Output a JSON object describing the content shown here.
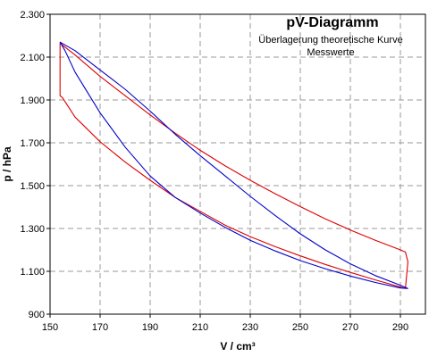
{
  "chart_data": {
    "type": "line",
    "title": "pV-Diagramm",
    "subtitle_lines": [
      "Überlagerung theoretische Kurve",
      "Messwerte"
    ],
    "xlabel": "V / cm³",
    "ylabel": "p / hPa",
    "xlim": [
      150,
      300
    ],
    "ylim": [
      900,
      2300
    ],
    "x_ticks": [
      150,
      170,
      190,
      210,
      230,
      250,
      270,
      290
    ],
    "y_ticks": [
      900,
      1100,
      1300,
      1500,
      1700,
      1900,
      2100,
      2300
    ],
    "x_tick_labels": [
      "150",
      "170",
      "190",
      "210",
      "230",
      "250",
      "270",
      "290"
    ],
    "y_tick_labels": [
      "900",
      "1.100",
      "1.300",
      "1.500",
      "1.700",
      "1.900",
      "2.100",
      "2.300"
    ],
    "grid": true,
    "series": [
      {
        "color": "#dd0000",
        "closed": true,
        "points": [
          [
            154,
            2165
          ],
          [
            160,
            2110
          ],
          [
            170,
            2010
          ],
          [
            180,
            1920
          ],
          [
            190,
            1830
          ],
          [
            200,
            1745
          ],
          [
            210,
            1665
          ],
          [
            220,
            1592
          ],
          [
            230,
            1525
          ],
          [
            240,
            1462
          ],
          [
            250,
            1402
          ],
          [
            260,
            1345
          ],
          [
            270,
            1293
          ],
          [
            280,
            1245
          ],
          [
            290,
            1200
          ],
          [
            292,
            1190
          ],
          [
            293,
            1145
          ],
          [
            292,
            1020
          ],
          [
            280,
            1060
          ],
          [
            270,
            1095
          ],
          [
            260,
            1132
          ],
          [
            250,
            1172
          ],
          [
            240,
            1215
          ],
          [
            230,
            1262
          ],
          [
            220,
            1315
          ],
          [
            210,
            1380
          ],
          [
            200,
            1445
          ],
          [
            190,
            1525
          ],
          [
            180,
            1610
          ],
          [
            170,
            1705
          ],
          [
            160,
            1820
          ],
          [
            155,
            1910
          ],
          [
            154,
            1920
          ]
        ]
      },
      {
        "color": "#0000cc",
        "closed": true,
        "points": [
          [
            154,
            2170
          ],
          [
            160,
            2130
          ],
          [
            170,
            2040
          ],
          [
            180,
            1950
          ],
          [
            190,
            1848
          ],
          [
            200,
            1740
          ],
          [
            210,
            1640
          ],
          [
            220,
            1545
          ],
          [
            230,
            1450
          ],
          [
            240,
            1360
          ],
          [
            250,
            1275
          ],
          [
            260,
            1200
          ],
          [
            270,
            1135
          ],
          [
            280,
            1080
          ],
          [
            290,
            1035
          ],
          [
            293,
            1020
          ],
          [
            290,
            1022
          ],
          [
            280,
            1048
          ],
          [
            270,
            1078
          ],
          [
            260,
            1112
          ],
          [
            250,
            1150
          ],
          [
            240,
            1195
          ],
          [
            230,
            1245
          ],
          [
            220,
            1305
          ],
          [
            210,
            1372
          ],
          [
            200,
            1445
          ],
          [
            190,
            1545
          ],
          [
            180,
            1680
          ],
          [
            170,
            1840
          ],
          [
            160,
            2030
          ],
          [
            156,
            2130
          ],
          [
            154,
            2170
          ]
        ]
      }
    ]
  }
}
